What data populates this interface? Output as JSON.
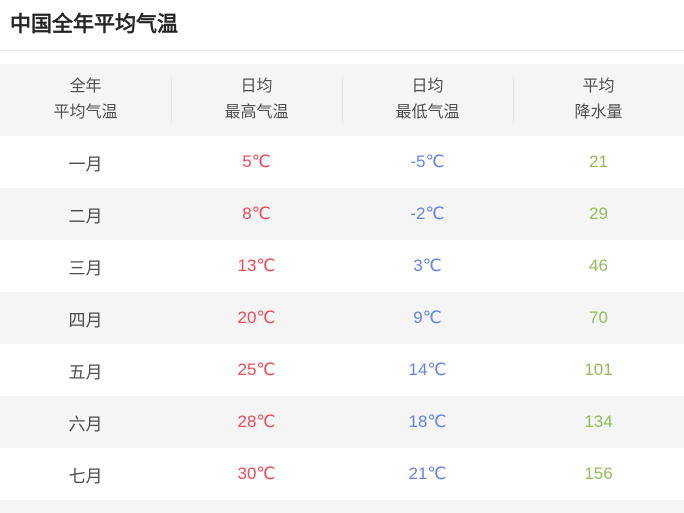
{
  "page": {
    "title": "中国全年平均气温"
  },
  "table": {
    "columns": [
      {
        "line1": "全年",
        "line2": "平均气温"
      },
      {
        "line1": "日均",
        "line2": "最高气温"
      },
      {
        "line1": "日均",
        "line2": "最低气温"
      },
      {
        "line1": "平均",
        "line2": "降水量"
      }
    ],
    "rows": [
      {
        "month": "一月",
        "max": "5℃",
        "min": "-5℃",
        "precip": "21"
      },
      {
        "month": "二月",
        "max": "8℃",
        "min": "-2℃",
        "precip": "29"
      },
      {
        "month": "三月",
        "max": "13℃",
        "min": "3℃",
        "precip": "46"
      },
      {
        "month": "四月",
        "max": "20℃",
        "min": "9℃",
        "precip": "70"
      },
      {
        "month": "五月",
        "max": "25℃",
        "min": "14℃",
        "precip": "101"
      },
      {
        "month": "六月",
        "max": "28℃",
        "min": "18℃",
        "precip": "134"
      },
      {
        "month": "七月",
        "max": "30℃",
        "min": "21℃",
        "precip": "156"
      }
    ]
  },
  "colors": {
    "title_text": "#262626",
    "header_text": "#4f4f4f",
    "month_text": "#4c4c4c",
    "max_temp": "#ee4a57",
    "min_temp": "#6583e6",
    "precipitation": "#8fbe56",
    "stripe_bg": "#f5f5f5",
    "divider": "#e6e6e6"
  },
  "chart_data": {
    "type": "table",
    "title": "中国全年平均气温",
    "columns": [
      "全年平均气温",
      "日均最高气温",
      "日均最低气温",
      "平均降水量"
    ],
    "categories": [
      "一月",
      "二月",
      "三月",
      "四月",
      "五月",
      "六月",
      "七月"
    ],
    "series": [
      {
        "name": "日均最高气温(℃)",
        "values": [
          5,
          8,
          13,
          20,
          25,
          28,
          30
        ]
      },
      {
        "name": "日均最低气温(℃)",
        "values": [
          -5,
          -2,
          3,
          9,
          14,
          18,
          21
        ]
      },
      {
        "name": "平均降水量",
        "values": [
          21,
          29,
          46,
          70,
          101,
          134,
          156
        ]
      }
    ],
    "layout": "zebra-striped table, alternating #ffffff / #f5f5f5 rows, all cells center-aligned"
  }
}
